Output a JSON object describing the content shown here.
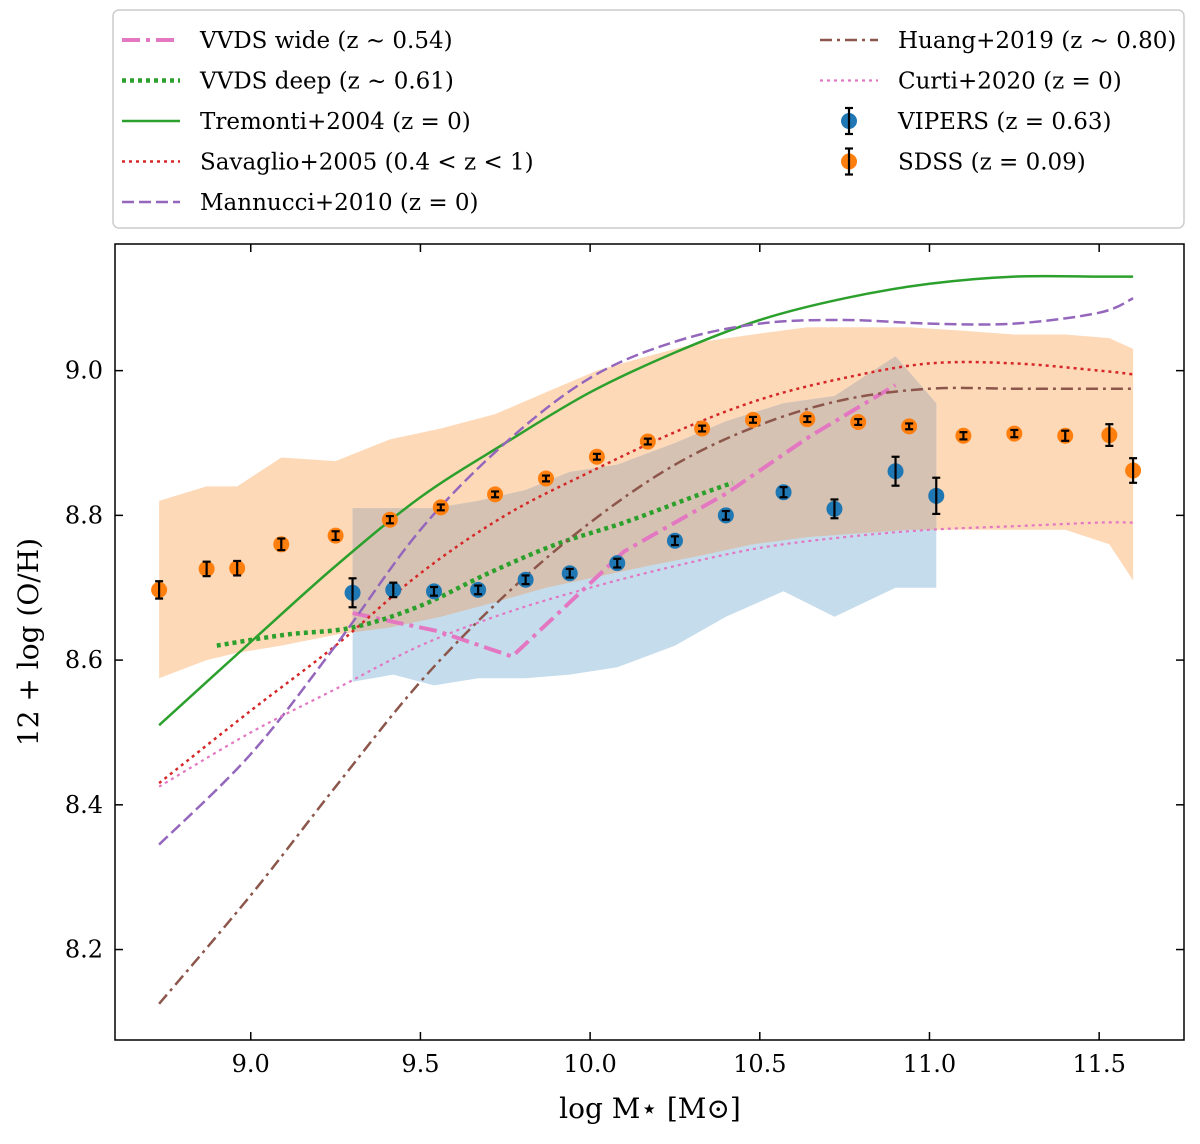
{
  "chart_data": {
    "type": "line",
    "title": "",
    "xlabel": "log M⋆ [M⊙]",
    "ylabel": "12 + log (O/H)",
    "xlim": [
      8.6,
      11.75
    ],
    "ylim": [
      8.075,
      9.175
    ],
    "xticks": [
      9.0,
      9.5,
      10.0,
      10.5,
      11.0,
      11.5
    ],
    "xtick_labels": [
      "9.0",
      "9.5",
      "10.0",
      "10.5",
      "11.0",
      "11.5"
    ],
    "yticks": [
      8.2,
      8.4,
      8.6,
      8.8,
      9.0
    ],
    "ytick_labels": [
      "8.2",
      "8.4",
      "8.6",
      "8.8",
      "9.0"
    ],
    "grid": false,
    "legend_position": "above plot, two columns",
    "colors": {
      "vvds_wide": "#e377c2",
      "vvds_deep": "#2ca02c",
      "tremonti": "#2ca02c",
      "savaglio": "#d62728",
      "mannucci": "#9467bd",
      "huang": "#8c564b",
      "curti": "#e377c2",
      "vipers": "#1f77b4",
      "sdss": "#ff7f0e",
      "sdss_band": "#fdd9b8",
      "vipers_band": "#c5dcec",
      "overlap_band": "#d6c2b2"
    },
    "series": [
      {
        "id": "vvds_wide",
        "name": "VVDS wide",
        "label_math": "(z ∼ 0.54)",
        "style": "dashdot-thick",
        "x": [
          9.3,
          9.55,
          9.77,
          10.1,
          10.4,
          10.65,
          10.9
        ],
        "y": [
          8.665,
          8.64,
          8.605,
          8.75,
          8.83,
          8.91,
          8.98
        ]
      },
      {
        "id": "vvds_deep",
        "name": "VVDS deep",
        "label_math": "(z ∼ 0.61)",
        "style": "dotted-thick",
        "x": [
          8.9,
          9.1,
          9.3,
          9.5,
          9.7,
          9.9,
          10.1,
          10.3,
          10.42
        ],
        "y": [
          8.62,
          8.635,
          8.645,
          8.675,
          8.72,
          8.76,
          8.79,
          8.825,
          8.845
        ]
      },
      {
        "id": "tremonti",
        "name": "Tremonti+2004",
        "label_math": "(z = 0)",
        "style": "solid",
        "x": [
          8.73,
          9.0,
          9.25,
          9.5,
          9.75,
          10.0,
          10.25,
          10.5,
          10.75,
          11.0,
          11.25,
          11.5,
          11.6
        ],
        "y": [
          8.51,
          8.625,
          8.73,
          8.825,
          8.9,
          8.97,
          9.025,
          9.07,
          9.1,
          9.12,
          9.13,
          9.13,
          9.13
        ]
      },
      {
        "id": "savaglio",
        "name": "Savaglio+2005",
        "label_math": "(0.4 < z < 1)",
        "style": "dotted",
        "x": [
          8.73,
          9.0,
          9.25,
          9.5,
          9.75,
          10.0,
          10.25,
          10.5,
          10.75,
          11.0,
          11.25,
          11.5,
          11.6
        ],
        "y": [
          8.43,
          8.53,
          8.62,
          8.72,
          8.8,
          8.86,
          8.915,
          8.96,
          8.99,
          9.01,
          9.01,
          9.0,
          8.995
        ]
      },
      {
        "id": "mannucci",
        "name": "Mannucci+2010",
        "label_math": "(z = 0)",
        "style": "dashed",
        "x": [
          8.73,
          9.0,
          9.25,
          9.5,
          9.75,
          10.0,
          10.25,
          10.5,
          10.75,
          11.0,
          11.25,
          11.5,
          11.6
        ],
        "y": [
          8.345,
          8.47,
          8.62,
          8.78,
          8.9,
          8.99,
          9.04,
          9.065,
          9.07,
          9.065,
          9.065,
          9.08,
          9.1
        ]
      },
      {
        "id": "huang",
        "name": "Huang+2019",
        "label_math": "(z ∼ 0.80)",
        "style": "dashdot",
        "x": [
          8.73,
          9.0,
          9.25,
          9.5,
          9.75,
          10.0,
          10.25,
          10.5,
          10.75,
          11.0,
          11.25,
          11.5,
          11.6
        ],
        "y": [
          8.125,
          8.275,
          8.425,
          8.57,
          8.69,
          8.79,
          8.87,
          8.925,
          8.96,
          8.975,
          8.975,
          8.975,
          8.975
        ]
      },
      {
        "id": "curti",
        "name": "Curti+2020",
        "label_math": "(z = 0)",
        "style": "dotted-pink",
        "x": [
          8.73,
          9.0,
          9.25,
          9.5,
          9.75,
          10.0,
          10.25,
          10.5,
          10.75,
          11.0,
          11.25,
          11.5,
          11.6
        ],
        "y": [
          8.425,
          8.5,
          8.56,
          8.62,
          8.665,
          8.7,
          8.73,
          8.755,
          8.77,
          8.78,
          8.785,
          8.79,
          8.79
        ]
      }
    ],
    "points": [
      {
        "id": "vipers",
        "name": "VIPERS",
        "label_math": "(z = 0.63)",
        "x": [
          9.3,
          9.42,
          9.54,
          9.67,
          9.81,
          9.94,
          10.08,
          10.25,
          10.4,
          10.57,
          10.72,
          10.9,
          11.02
        ],
        "y": [
          8.693,
          8.697,
          8.695,
          8.697,
          8.711,
          8.72,
          8.734,
          8.765,
          8.8,
          8.832,
          8.809,
          8.861,
          8.827
        ],
        "err": [
          0.02,
          0.01,
          0.006,
          0.006,
          0.006,
          0.006,
          0.006,
          0.006,
          0.006,
          0.007,
          0.013,
          0.02,
          0.025
        ]
      },
      {
        "id": "sdss",
        "name": "SDSS",
        "label_math": "(z = 0.09)",
        "x": [
          8.73,
          8.87,
          8.96,
          9.09,
          9.25,
          9.41,
          9.56,
          9.72,
          9.87,
          10.02,
          10.17,
          10.33,
          10.48,
          10.64,
          10.79,
          10.94,
          11.1,
          11.25,
          11.4,
          11.53,
          11.6
        ],
        "y": [
          8.697,
          8.726,
          8.727,
          8.76,
          8.772,
          8.794,
          8.811,
          8.829,
          8.851,
          8.881,
          8.902,
          8.92,
          8.932,
          8.933,
          8.929,
          8.923,
          8.91,
          8.913,
          8.91,
          8.911,
          8.862
        ],
        "err": [
          0.012,
          0.01,
          0.01,
          0.008,
          0.006,
          0.005,
          0.004,
          0.004,
          0.004,
          0.004,
          0.004,
          0.004,
          0.004,
          0.004,
          0.004,
          0.004,
          0.005,
          0.005,
          0.007,
          0.015,
          0.017
        ]
      }
    ],
    "bands": [
      {
        "id": "sdss_band",
        "name": "SDSS scatter",
        "x": [
          8.73,
          8.87,
          8.96,
          9.09,
          9.25,
          9.41,
          9.56,
          9.72,
          9.87,
          10.02,
          10.17,
          10.33,
          10.48,
          10.64,
          10.79,
          10.94,
          11.1,
          11.25,
          11.4,
          11.53,
          11.6
        ],
        "lower": [
          8.575,
          8.6,
          8.61,
          8.62,
          8.635,
          8.645,
          8.66,
          8.68,
          8.7,
          8.715,
          8.73,
          8.745,
          8.76,
          8.77,
          8.775,
          8.78,
          8.78,
          8.78,
          8.78,
          8.76,
          8.71
        ],
        "upper": [
          8.82,
          8.84,
          8.84,
          8.88,
          8.875,
          8.905,
          8.92,
          8.94,
          8.97,
          9.0,
          9.02,
          9.04,
          9.05,
          9.06,
          9.06,
          9.06,
          9.055,
          9.05,
          9.05,
          9.045,
          9.03
        ]
      },
      {
        "id": "vipers_band",
        "name": "VIPERS scatter",
        "x": [
          9.3,
          9.42,
          9.54,
          9.67,
          9.81,
          9.94,
          10.08,
          10.25,
          10.4,
          10.57,
          10.72,
          10.9,
          11.02
        ],
        "lower": [
          8.57,
          8.58,
          8.565,
          8.575,
          8.575,
          8.58,
          8.59,
          8.62,
          8.66,
          8.695,
          8.66,
          8.7,
          8.7
        ],
        "upper": [
          8.81,
          8.81,
          8.81,
          8.82,
          8.835,
          8.86,
          8.87,
          8.9,
          8.93,
          8.955,
          8.965,
          9.02,
          8.955
        ]
      }
    ]
  }
}
